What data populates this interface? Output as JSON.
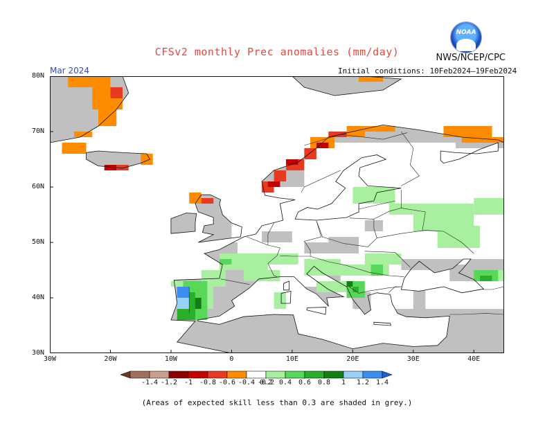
{
  "header": {
    "title": "CFSv2 monthly Prec anomalies (mm/day)",
    "agency": "NWS/NCEP/CPC",
    "logo_text": "NOAA",
    "month": "Mar 2024",
    "initial_conditions": "Initial conditions: 10Feb2024–19Feb2024"
  },
  "map": {
    "region": "Europe",
    "lon_range": [
      -30,
      45
    ],
    "lat_range": [
      30,
      80
    ],
    "x_ticks": [
      "30W",
      "20W",
      "10W",
      "0",
      "10E",
      "20E",
      "30E",
      "40E"
    ],
    "y_ticks": [
      "80N",
      "70N",
      "60N",
      "50N",
      "40N",
      "30N"
    ],
    "colors": {
      "land_skill_low": "#c0c0c0",
      "ocean": "#ffffff",
      "coast": "#111111"
    }
  },
  "legend": {
    "labels": [
      "-1.4",
      "-1.2",
      "-1",
      "-0.8",
      "-0.6",
      "-0.4",
      "-0.2",
      "0.2",
      "0.4",
      "0.6",
      "0.8",
      "1",
      "1.2",
      "1.4"
    ],
    "colors": [
      "#6b3a26",
      "#a0705a",
      "#c8a08c",
      "#8b0000",
      "#c40000",
      "#e83a1e",
      "#ff8c00",
      "#ffffff",
      "#a8f0a0",
      "#58d858",
      "#28b028",
      "#108010",
      "#98d0f8",
      "#3a8ef0",
      "#1e5ed8"
    ]
  },
  "note": "(Areas of expected skill less than 0.3 are shaded in grey.)"
}
